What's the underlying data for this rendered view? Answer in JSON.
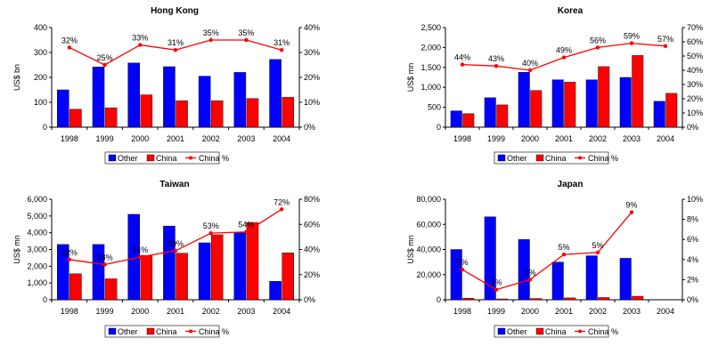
{
  "chart_data": [
    {
      "type": "bar",
      "title": "Hong Kong",
      "ylabel": "US$ bn",
      "categories": [
        "1998",
        "1999",
        "2000",
        "2001",
        "2002",
        "2003",
        "2004"
      ],
      "ylim": [
        0,
        400
      ],
      "yticks": [
        "0",
        "100",
        "200",
        "300",
        "400"
      ],
      "y2lim": [
        0,
        0.4
      ],
      "y2ticks": [
        "0%",
        "10%",
        "20%",
        "30%",
        "40%"
      ],
      "series": [
        {
          "name": "Other",
          "type": "bar",
          "color": "#0000ff",
          "values": [
            150,
            242,
            258,
            243,
            205,
            220,
            272
          ]
        },
        {
          "name": "China",
          "type": "bar",
          "color": "#ff0000",
          "values": [
            72,
            78,
            130,
            106,
            106,
            115,
            120
          ]
        },
        {
          "name": "China %",
          "type": "line",
          "axis": "right",
          "color": "#ff0000",
          "values": [
            0.32,
            0.25,
            0.33,
            0.31,
            0.35,
            0.35,
            0.31
          ],
          "labels": [
            "32%",
            "25%",
            "33%",
            "31%",
            "35%",
            "35%",
            "31%"
          ]
        }
      ],
      "legend": {
        "position": "bottom",
        "entries": [
          "Other",
          "China",
          "China %"
        ]
      }
    },
    {
      "type": "bar",
      "title": "Korea",
      "ylabel": "US$ mn",
      "categories": [
        "1998",
        "1999",
        "2000",
        "2001",
        "2002",
        "2003",
        "2004"
      ],
      "ylim": [
        0,
        2500
      ],
      "yticks": [
        "0",
        "500",
        "1,000",
        "1,500",
        "2,000",
        "2,500"
      ],
      "y2lim": [
        0,
        0.7
      ],
      "y2ticks": [
        "0%",
        "10%",
        "20%",
        "30%",
        "40%",
        "50%",
        "60%",
        "70%"
      ],
      "series": [
        {
          "name": "Other",
          "type": "bar",
          "color": "#0000ff",
          "values": [
            410,
            740,
            1380,
            1190,
            1190,
            1250,
            650
          ]
        },
        {
          "name": "China",
          "type": "bar",
          "color": "#ff0000",
          "values": [
            340,
            560,
            920,
            1130,
            1520,
            1800,
            850
          ]
        },
        {
          "name": "China %",
          "type": "line",
          "axis": "right",
          "color": "#ff0000",
          "values": [
            0.44,
            0.43,
            0.4,
            0.49,
            0.56,
            0.59,
            0.57
          ],
          "labels": [
            "44%",
            "43%",
            "40%",
            "49%",
            "56%",
            "59%",
            "57%"
          ]
        }
      ],
      "legend": {
        "position": "bottom",
        "entries": [
          "Other",
          "China",
          "China %"
        ]
      }
    },
    {
      "type": "bar",
      "title": "Taiwan",
      "ylabel": "US$ mn",
      "categories": [
        "1998",
        "1999",
        "2000",
        "2001",
        "2002",
        "2003",
        "2004"
      ],
      "ylim": [
        0,
        6000
      ],
      "yticks": [
        "0",
        "1,000",
        "2,000",
        "3,000",
        "4,000",
        "5,000",
        "6,000"
      ],
      "y2lim": [
        0,
        0.8
      ],
      "y2ticks": [
        "0%",
        "20%",
        "40%",
        "60%",
        "80%"
      ],
      "series": [
        {
          "name": "Other",
          "type": "bar",
          "color": "#0000ff",
          "values": [
            3300,
            3300,
            5100,
            4400,
            3400,
            4000,
            1100
          ]
        },
        {
          "name": "China",
          "type": "bar",
          "color": "#ff0000",
          "values": [
            1550,
            1250,
            2650,
            2780,
            3880,
            4600,
            2800
          ]
        },
        {
          "name": "China %",
          "type": "line",
          "axis": "right",
          "color": "#ff0000",
          "values": [
            0.32,
            0.28,
            0.34,
            0.39,
            0.53,
            0.54,
            0.72
          ],
          "labels": [
            "32%",
            "28%",
            "34%",
            "39%",
            "53%",
            "54%",
            "72%"
          ]
        }
      ],
      "legend": {
        "position": "bottom",
        "entries": [
          "Other",
          "China",
          "China %"
        ]
      }
    },
    {
      "type": "bar",
      "title": "Japan",
      "ylabel": "US$ mn",
      "categories": [
        "1998",
        "1999",
        "2000",
        "2001",
        "2002",
        "2003",
        "2004"
      ],
      "ylim": [
        0,
        80000
      ],
      "yticks": [
        "0",
        "20,000",
        "40,000",
        "60,000",
        "80,000"
      ],
      "y2lim": [
        0,
        0.1
      ],
      "y2ticks": [
        "0%",
        "2%",
        "4%",
        "6%",
        "8%",
        "10%"
      ],
      "series": [
        {
          "name": "Other",
          "type": "bar",
          "color": "#0000ff",
          "values": [
            40000,
            66000,
            48000,
            30000,
            35000,
            33000,
            null
          ]
        },
        {
          "name": "China",
          "type": "bar",
          "color": "#ff0000",
          "values": [
            1200,
            700,
            1000,
            1500,
            1800,
            2800,
            null
          ]
        },
        {
          "name": "China %",
          "type": "line",
          "axis": "right",
          "color": "#ff0000",
          "values": [
            0.03,
            0.01,
            0.02,
            0.045,
            0.047,
            0.087,
            null
          ],
          "labels": [
            "3%",
            "1%",
            "2%",
            "5%",
            "5%",
            "9%",
            ""
          ]
        }
      ],
      "legend": {
        "position": "bottom",
        "entries": [
          "Other",
          "China",
          "China %"
        ]
      }
    }
  ]
}
